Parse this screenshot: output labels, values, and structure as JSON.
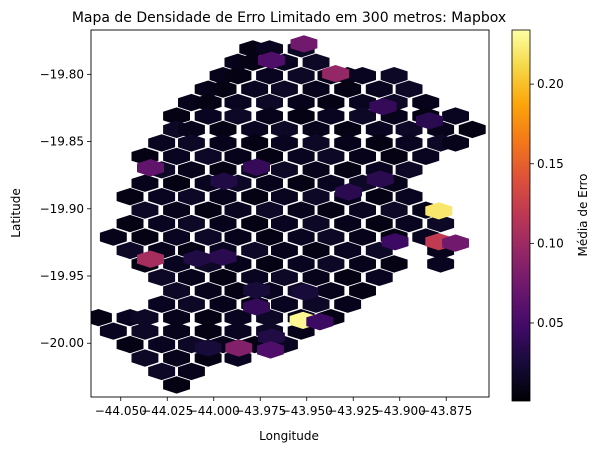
{
  "chart_data": {
    "type": "heatmap",
    "subtype": "hexbin",
    "title": "Mapa de Densidade de Erro Limitado em 300 metros: Mapbox",
    "xlabel": "Longitude",
    "ylabel": "Latitude",
    "xlim": [
      -44.066,
      -43.852
    ],
    "ylim": [
      -20.04,
      -19.767
    ],
    "x_ticks": [
      -44.05,
      -44.025,
      -44.0,
      -43.975,
      -43.95,
      -43.925,
      -43.9,
      -43.875
    ],
    "x_tick_labels": [
      "−44.050",
      "−44.025",
      "−44.000",
      "−43.975",
      "−43.950",
      "−43.925",
      "−43.900",
      "−43.875"
    ],
    "y_ticks": [
      -19.8,
      -19.85,
      -19.9,
      -19.95,
      -20.0
    ],
    "y_tick_labels": [
      "−19.80",
      "−19.85",
      "−19.90",
      "−19.95",
      "−20.00"
    ],
    "colormap": "inferno",
    "color_range": [
      0.001,
      0.234
    ],
    "colorbar": {
      "label": "Média de Erro",
      "ticks": [
        0.05,
        0.1,
        0.15,
        0.2
      ],
      "tick_labels": [
        "0.05",
        "0.10",
        "0.15",
        "0.20"
      ]
    },
    "grid": false,
    "hex_size_deg": {
      "dx": 0.00836,
      "dy": 0.00498
    },
    "highlighted_cells": [
      {
        "lon": -43.9515,
        "lat": -19.7773,
        "value": 0.075
      },
      {
        "lon": -43.969,
        "lat": -19.7895,
        "value": 0.055
      },
      {
        "lon": -43.9345,
        "lat": -19.7995,
        "value": 0.095
      },
      {
        "lon": -43.909,
        "lat": -19.824,
        "value": 0.04
      },
      {
        "lon": -43.884,
        "lat": -19.8345,
        "value": 0.035
      },
      {
        "lon": -44.034,
        "lat": -19.8695,
        "value": 0.065
      },
      {
        "lon": -43.977,
        "lat": -19.869,
        "value": 0.04
      },
      {
        "lon": -43.9945,
        "lat": -19.8795,
        "value": 0.03
      },
      {
        "lon": -43.9105,
        "lat": -19.878,
        "value": 0.035
      },
      {
        "lon": -43.9275,
        "lat": -19.8875,
        "value": 0.035
      },
      {
        "lon": -43.879,
        "lat": -19.9015,
        "value": 0.22
      },
      {
        "lon": -43.879,
        "lat": -19.9245,
        "value": 0.12
      },
      {
        "lon": -43.87,
        "lat": -19.9255,
        "value": 0.075
      },
      {
        "lon": -43.9025,
        "lat": -19.9245,
        "value": 0.045
      },
      {
        "lon": -44.034,
        "lat": -19.9375,
        "value": 0.105
      },
      {
        "lon": -44.009,
        "lat": -19.937,
        "value": 0.03
      },
      {
        "lon": -43.995,
        "lat": -19.936,
        "value": 0.035
      },
      {
        "lon": -43.977,
        "lat": -19.9605,
        "value": 0.025
      },
      {
        "lon": -43.951,
        "lat": -19.962,
        "value": 0.025
      },
      {
        "lon": -43.977,
        "lat": -19.973,
        "value": 0.04
      },
      {
        "lon": -43.952,
        "lat": -19.983,
        "value": 0.23
      },
      {
        "lon": -43.943,
        "lat": -19.984,
        "value": 0.045
      },
      {
        "lon": -43.969,
        "lat": -19.9955,
        "value": 0.03
      },
      {
        "lon": -43.9865,
        "lat": -20.0035,
        "value": 0.085
      },
      {
        "lon": -43.9695,
        "lat": -20.005,
        "value": 0.055
      },
      {
        "lon": -44.003,
        "lat": -20.0035,
        "value": 0.025
      }
    ],
    "shape_centers": [
      [
        -43.979,
        -19.781
      ],
      [
        -43.97,
        -19.781
      ],
      [
        -43.953,
        -19.781
      ],
      [
        -43.987,
        -19.791
      ],
      [
        -43.979,
        -19.791
      ],
      [
        -43.962,
        -19.791
      ],
      [
        -43.945,
        -19.791
      ],
      [
        -43.995,
        -19.801
      ],
      [
        -43.987,
        -19.801
      ],
      [
        -43.97,
        -19.801
      ],
      [
        -43.953,
        -19.801
      ],
      [
        -43.937,
        -19.801
      ],
      [
        -43.928,
        -19.801
      ],
      [
        -43.92,
        -19.801
      ],
      [
        -43.903,
        -19.801
      ],
      [
        -44.003,
        -19.811
      ],
      [
        -43.995,
        -19.811
      ],
      [
        -43.978,
        -19.811
      ],
      [
        -43.962,
        -19.811
      ],
      [
        -43.945,
        -19.811
      ],
      [
        -43.928,
        -19.811
      ],
      [
        -43.911,
        -19.811
      ],
      [
        -43.895,
        -19.811
      ],
      [
        -44.012,
        -19.821
      ],
      [
        -44.003,
        -19.821
      ],
      [
        -43.987,
        -19.821
      ],
      [
        -43.97,
        -19.821
      ],
      [
        -43.953,
        -19.821
      ],
      [
        -43.937,
        -19.821
      ],
      [
        -43.92,
        -19.821
      ],
      [
        -43.903,
        -19.821
      ],
      [
        -43.886,
        -19.821
      ],
      [
        -44.02,
        -19.831
      ],
      [
        -44.003,
        -19.831
      ],
      [
        -43.987,
        -19.831
      ],
      [
        -43.97,
        -19.831
      ],
      [
        -43.953,
        -19.831
      ],
      [
        -43.937,
        -19.831
      ],
      [
        -43.92,
        -19.831
      ],
      [
        -43.903,
        -19.831
      ],
      [
        -43.886,
        -19.831
      ],
      [
        -43.87,
        -19.831
      ],
      [
        -44.02,
        -19.841
      ],
      [
        -44.012,
        -19.841
      ],
      [
        -43.995,
        -19.841
      ],
      [
        -43.978,
        -19.841
      ],
      [
        -43.962,
        -19.841
      ],
      [
        -43.945,
        -19.841
      ],
      [
        -43.928,
        -19.841
      ],
      [
        -43.911,
        -19.841
      ],
      [
        -43.895,
        -19.841
      ],
      [
        -43.878,
        -19.841
      ],
      [
        -43.861,
        -19.841
      ],
      [
        -44.028,
        -19.851
      ],
      [
        -44.012,
        -19.851
      ],
      [
        -43.995,
        -19.851
      ],
      [
        -43.978,
        -19.851
      ],
      [
        -43.962,
        -19.851
      ],
      [
        -43.945,
        -19.851
      ],
      [
        -43.928,
        -19.851
      ],
      [
        -43.911,
        -19.851
      ],
      [
        -43.895,
        -19.851
      ],
      [
        -43.878,
        -19.851
      ],
      [
        -43.87,
        -19.851
      ],
      [
        -44.037,
        -19.861
      ],
      [
        -44.02,
        -19.861
      ],
      [
        -44.003,
        -19.861
      ],
      [
        -43.987,
        -19.861
      ],
      [
        -43.97,
        -19.861
      ],
      [
        -43.953,
        -19.861
      ],
      [
        -43.937,
        -19.861
      ],
      [
        -43.92,
        -19.861
      ],
      [
        -43.903,
        -19.861
      ],
      [
        -43.886,
        -19.861
      ],
      [
        -44.028,
        -19.871
      ],
      [
        -44.012,
        -19.871
      ],
      [
        -43.995,
        -19.871
      ],
      [
        -43.978,
        -19.871
      ],
      [
        -43.962,
        -19.871
      ],
      [
        -43.945,
        -19.871
      ],
      [
        -43.928,
        -19.871
      ],
      [
        -43.911,
        -19.871
      ],
      [
        -43.895,
        -19.871
      ],
      [
        -44.037,
        -19.881
      ],
      [
        -44.02,
        -19.881
      ],
      [
        -44.003,
        -19.881
      ],
      [
        -43.987,
        -19.881
      ],
      [
        -43.97,
        -19.881
      ],
      [
        -43.953,
        -19.881
      ],
      [
        -43.937,
        -19.881
      ],
      [
        -43.92,
        -19.881
      ],
      [
        -43.903,
        -19.881
      ],
      [
        -44.045,
        -19.891
      ],
      [
        -44.028,
        -19.891
      ],
      [
        -44.012,
        -19.891
      ],
      [
        -43.995,
        -19.891
      ],
      [
        -43.978,
        -19.891
      ],
      [
        -43.962,
        -19.891
      ],
      [
        -43.945,
        -19.891
      ],
      [
        -43.928,
        -19.891
      ],
      [
        -43.911,
        -19.891
      ],
      [
        -43.895,
        -19.891
      ],
      [
        -44.037,
        -19.901
      ],
      [
        -44.02,
        -19.901
      ],
      [
        -44.003,
        -19.901
      ],
      [
        -43.987,
        -19.901
      ],
      [
        -43.97,
        -19.901
      ],
      [
        -43.953,
        -19.901
      ],
      [
        -43.937,
        -19.901
      ],
      [
        -43.92,
        -19.901
      ],
      [
        -43.903,
        -19.901
      ],
      [
        -43.886,
        -19.901
      ],
      [
        -44.045,
        -19.911
      ],
      [
        -44.028,
        -19.911
      ],
      [
        -44.012,
        -19.911
      ],
      [
        -43.995,
        -19.911
      ],
      [
        -43.978,
        -19.911
      ],
      [
        -43.962,
        -19.911
      ],
      [
        -43.945,
        -19.911
      ],
      [
        -43.928,
        -19.911
      ],
      [
        -43.911,
        -19.911
      ],
      [
        -43.895,
        -19.911
      ],
      [
        -43.878,
        -19.911
      ],
      [
        -44.054,
        -19.921
      ],
      [
        -44.037,
        -19.921
      ],
      [
        -44.02,
        -19.921
      ],
      [
        -44.003,
        -19.921
      ],
      [
        -43.987,
        -19.921
      ],
      [
        -43.97,
        -19.921
      ],
      [
        -43.953,
        -19.921
      ],
      [
        -43.937,
        -19.921
      ],
      [
        -43.92,
        -19.921
      ],
      [
        -43.903,
        -19.921
      ],
      [
        -43.886,
        -19.921
      ],
      [
        -44.045,
        -19.931
      ],
      [
        -44.028,
        -19.931
      ],
      [
        -44.012,
        -19.931
      ],
      [
        -43.995,
        -19.931
      ],
      [
        -43.978,
        -19.931
      ],
      [
        -43.962,
        -19.931
      ],
      [
        -43.945,
        -19.931
      ],
      [
        -43.928,
        -19.931
      ],
      [
        -43.911,
        -19.931
      ],
      [
        -43.878,
        -19.931
      ],
      [
        -44.037,
        -19.941
      ],
      [
        -44.02,
        -19.941
      ],
      [
        -44.003,
        -19.941
      ],
      [
        -43.987,
        -19.941
      ],
      [
        -43.97,
        -19.941
      ],
      [
        -43.953,
        -19.941
      ],
      [
        -43.937,
        -19.941
      ],
      [
        -43.92,
        -19.941
      ],
      [
        -43.903,
        -19.941
      ],
      [
        -43.878,
        -19.941
      ],
      [
        -44.028,
        -19.951
      ],
      [
        -44.012,
        -19.951
      ],
      [
        -43.995,
        -19.951
      ],
      [
        -43.978,
        -19.951
      ],
      [
        -43.962,
        -19.951
      ],
      [
        -43.945,
        -19.951
      ],
      [
        -43.928,
        -19.951
      ],
      [
        -43.911,
        -19.951
      ],
      [
        -44.02,
        -19.961
      ],
      [
        -44.003,
        -19.961
      ],
      [
        -43.987,
        -19.961
      ],
      [
        -43.97,
        -19.961
      ],
      [
        -43.953,
        -19.961
      ],
      [
        -43.937,
        -19.961
      ],
      [
        -43.92,
        -19.961
      ],
      [
        -44.028,
        -19.971
      ],
      [
        -44.012,
        -19.971
      ],
      [
        -43.995,
        -19.971
      ],
      [
        -43.978,
        -19.971
      ],
      [
        -43.962,
        -19.971
      ],
      [
        -43.945,
        -19.971
      ],
      [
        -43.928,
        -19.971
      ],
      [
        -44.062,
        -19.981
      ],
      [
        -44.045,
        -19.981
      ],
      [
        -44.037,
        -19.981
      ],
      [
        -44.02,
        -19.981
      ],
      [
        -44.003,
        -19.981
      ],
      [
        -43.987,
        -19.981
      ],
      [
        -43.97,
        -19.981
      ],
      [
        -43.953,
        -19.981
      ],
      [
        -43.937,
        -19.981
      ],
      [
        -44.054,
        -19.991
      ],
      [
        -44.037,
        -19.991
      ],
      [
        -44.02,
        -19.991
      ],
      [
        -44.003,
        -19.991
      ],
      [
        -43.987,
        -19.991
      ],
      [
        -43.97,
        -19.991
      ],
      [
        -43.953,
        -19.991
      ],
      [
        -44.045,
        -20.001
      ],
      [
        -44.028,
        -20.001
      ],
      [
        -44.012,
        -20.001
      ],
      [
        -43.995,
        -20.001
      ],
      [
        -43.978,
        -20.001
      ],
      [
        -43.962,
        -20.001
      ],
      [
        -44.037,
        -20.011
      ],
      [
        -44.02,
        -20.011
      ],
      [
        -44.003,
        -20.011
      ],
      [
        -43.987,
        -20.011
      ],
      [
        -44.028,
        -20.021
      ],
      [
        -44.012,
        -20.021
      ],
      [
        -44.02,
        -20.031
      ]
    ]
  }
}
